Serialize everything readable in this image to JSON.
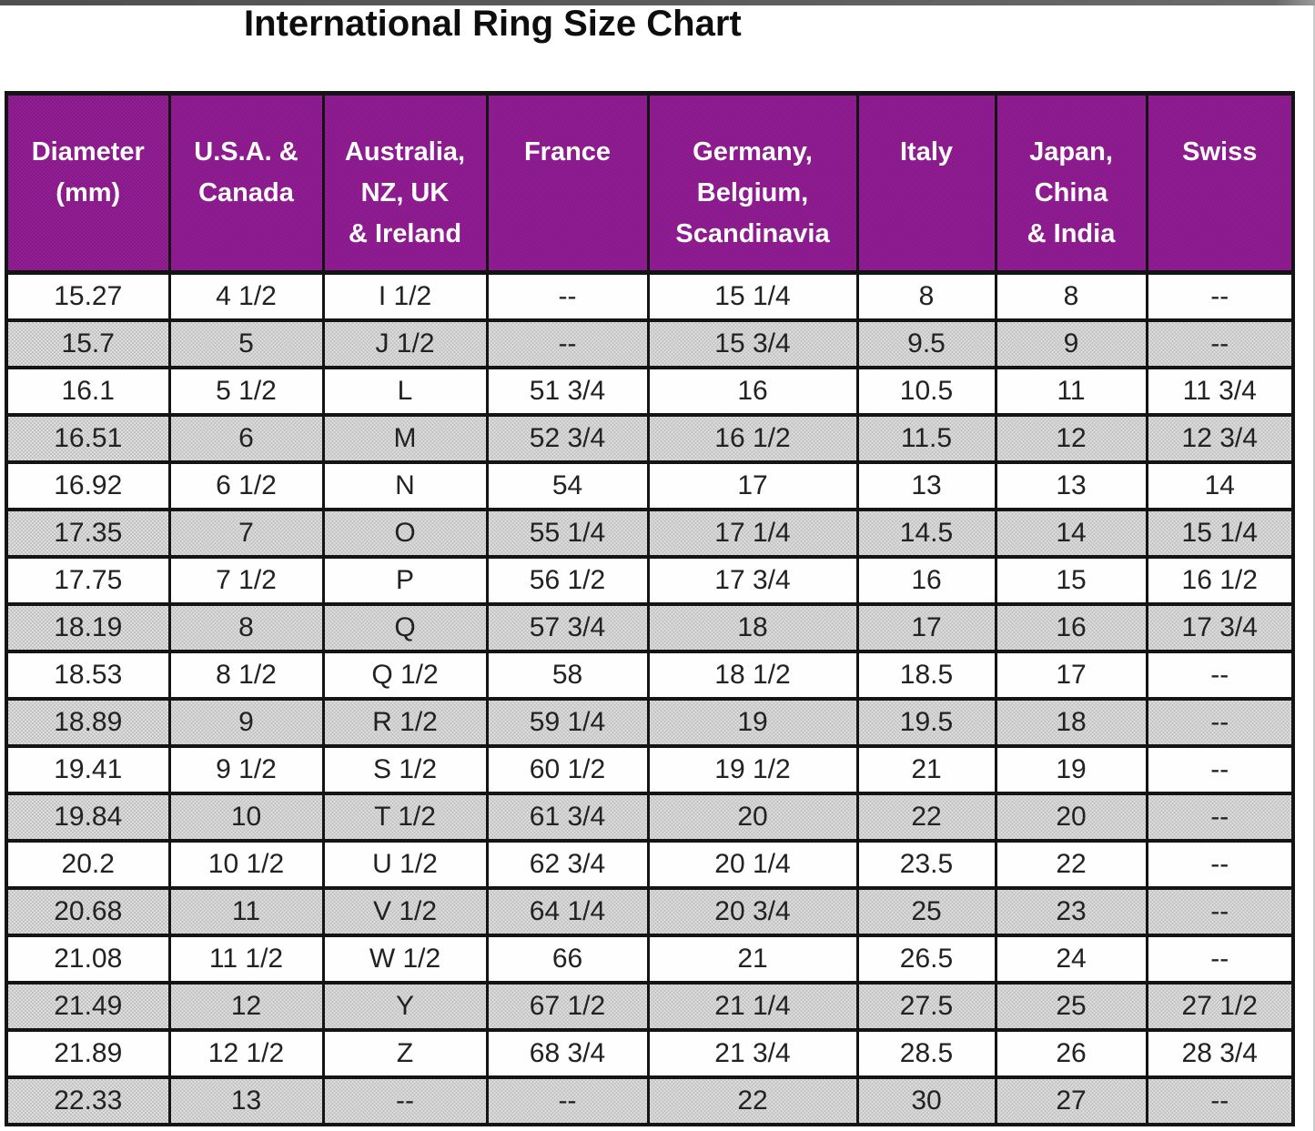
{
  "title": "International Ring Size Chart",
  "colors": {
    "header_background": "#8d1d8f",
    "header_text": "#ffffff",
    "shaded_row": "#d0d0d0",
    "row_text": "#222222",
    "border": "#141414",
    "top_strip": "#5e5e5e"
  },
  "chart_data": {
    "type": "table",
    "title": "International Ring Size Chart",
    "columns": [
      "Diameter\n(mm)",
      "U.S.A. &\nCanada",
      "Australia,\nNZ, UK\n& Ireland",
      "France",
      "Germany,\nBelgium,\nScandinavia",
      "Italy",
      "Japan,\nChina\n& India",
      "Swiss"
    ],
    "rows": [
      [
        "15.27",
        "4 1/2",
        "I 1/2",
        "--",
        "15 1/4",
        "8",
        "8",
        "--"
      ],
      [
        "15.7",
        "5",
        "J 1/2",
        "--",
        "15 3/4",
        "9.5",
        "9",
        "--"
      ],
      [
        "16.1",
        "5 1/2",
        "L",
        "51 3/4",
        "16",
        "10.5",
        "11",
        "11 3/4"
      ],
      [
        "16.51",
        "6",
        "M",
        "52 3/4",
        "16 1/2",
        "11.5",
        "12",
        "12 3/4"
      ],
      [
        "16.92",
        "6 1/2",
        "N",
        "54",
        "17",
        "13",
        "13",
        "14"
      ],
      [
        "17.35",
        "7",
        "O",
        "55 1/4",
        "17 1/4",
        "14.5",
        "14",
        "15 1/4"
      ],
      [
        "17.75",
        "7 1/2",
        "P",
        "56 1/2",
        "17 3/4",
        "16",
        "15",
        "16 1/2"
      ],
      [
        "18.19",
        "8",
        "Q",
        "57 3/4",
        "18",
        "17",
        "16",
        "17 3/4"
      ],
      [
        "18.53",
        "8 1/2",
        "Q 1/2",
        "58",
        "18 1/2",
        "18.5",
        "17",
        "--"
      ],
      [
        "18.89",
        "9",
        "R 1/2",
        "59 1/4",
        "19",
        "19.5",
        "18",
        "--"
      ],
      [
        "19.41",
        "9 1/2",
        "S 1/2",
        "60 1/2",
        "19 1/2",
        "21",
        "19",
        "--"
      ],
      [
        "19.84",
        "10",
        "T 1/2",
        "61 3/4",
        "20",
        "22",
        "20",
        "--"
      ],
      [
        "20.2",
        "10 1/2",
        "U 1/2",
        "62 3/4",
        "20 1/4",
        "23.5",
        "22",
        "--"
      ],
      [
        "20.68",
        "11",
        "V 1/2",
        "64 1/4",
        "20 3/4",
        "25",
        "23",
        "--"
      ],
      [
        "21.08",
        "11 1/2",
        "W 1/2",
        "66",
        "21",
        "26.5",
        "24",
        "--"
      ],
      [
        "21.49",
        "12",
        "Y",
        "67 1/2",
        "21 1/4",
        "27.5",
        "25",
        "27 1/2"
      ],
      [
        "21.89",
        "12 1/2",
        "Z",
        "68 3/4",
        "21 3/4",
        "28.5",
        "26",
        "28 3/4"
      ],
      [
        "22.33",
        "13",
        "--",
        "--",
        "22",
        "30",
        "27",
        "--"
      ]
    ]
  }
}
